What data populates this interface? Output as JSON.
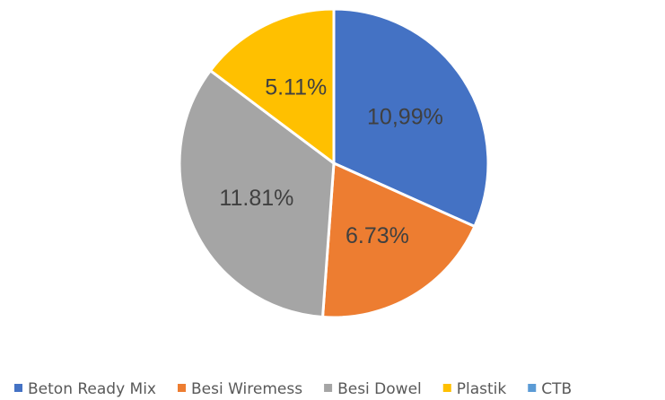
{
  "chart_data": {
    "type": "pie",
    "categories": [
      "Beton Ready Mix",
      "Besi Wiremess",
      "Besi Dowel",
      "Plastik",
      "CTB"
    ],
    "values": [
      10.99,
      6.73,
      11.81,
      5.11,
      0
    ],
    "data_labels": [
      "10,99%",
      "6.73%",
      "11.81%",
      "5.11%",
      ""
    ],
    "colors": [
      "#4472C4",
      "#ED7D31",
      "#A5A5A5",
      "#FFC000",
      "#5B9BD5"
    ],
    "legend": "bottom",
    "title": ""
  }
}
